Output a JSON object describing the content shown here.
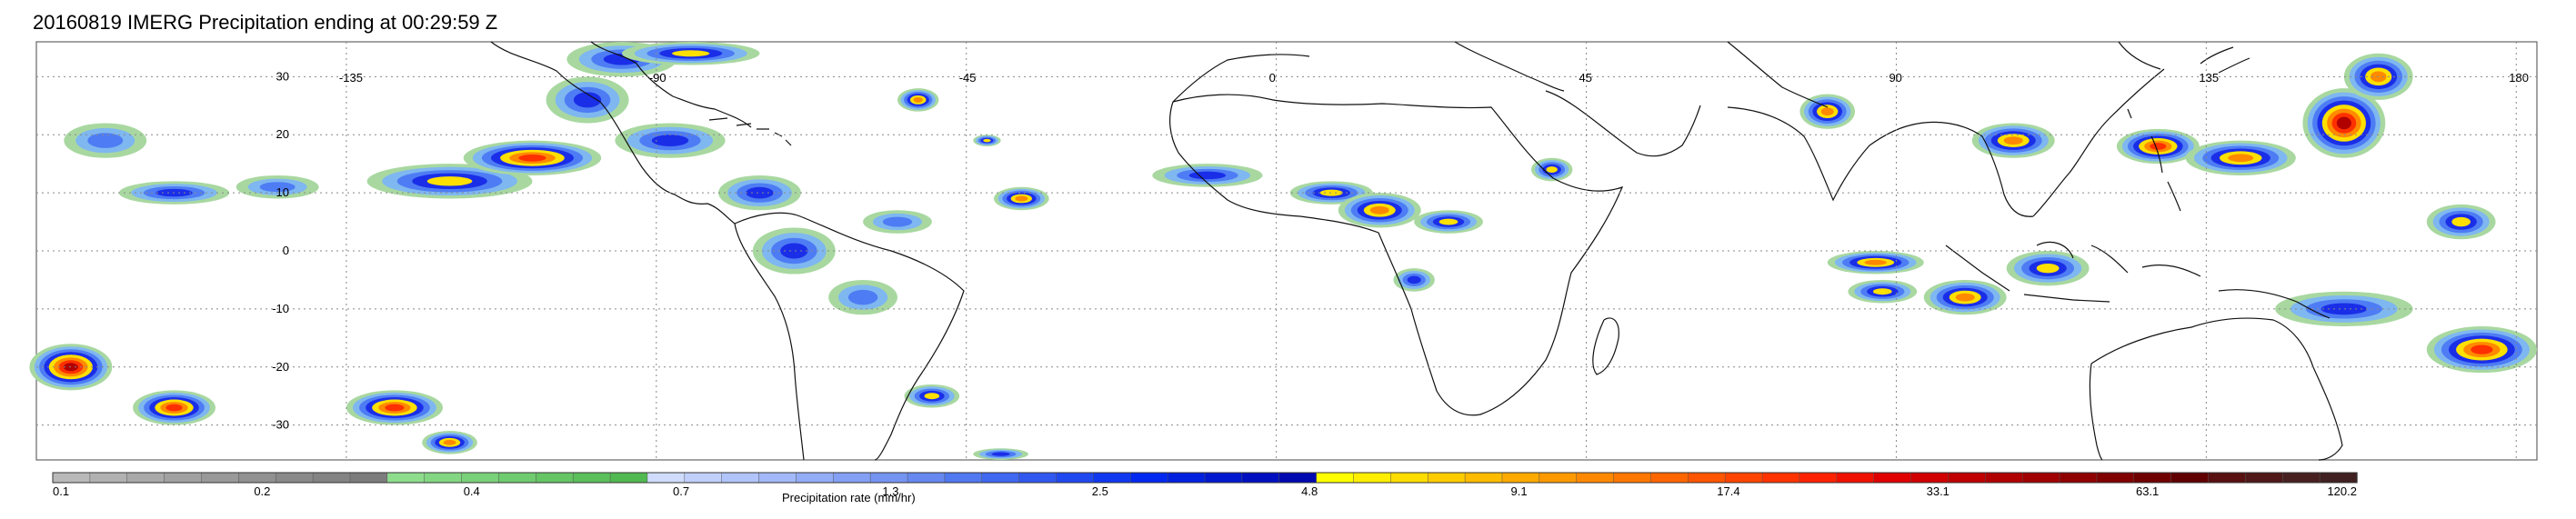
{
  "title": "20160819 IMERG Precipitation ending at 00:29:59 Z",
  "map": {
    "lon_ticks": [
      "-135",
      "-90",
      "-45",
      "0",
      "45",
      "90",
      "135",
      "180"
    ],
    "lat_ticks": [
      "30",
      "20",
      "10",
      "0",
      "-10",
      "-20",
      "-30"
    ],
    "lon_values": [
      -135,
      -90,
      -45,
      0,
      45,
      90,
      135,
      180
    ],
    "lat_values": [
      30,
      20,
      10,
      0,
      -10,
      -20,
      -30
    ],
    "lon_range": [
      -180,
      183
    ],
    "lat_range": [
      -36,
      36
    ],
    "grid": "dotted",
    "precip_clusters": [
      {
        "lon": -170,
        "lat": 19,
        "rx": 6,
        "ry": 3,
        "level": 3
      },
      {
        "lon": -160,
        "lat": 10,
        "rx": 8,
        "ry": 2,
        "level": 4
      },
      {
        "lon": -145,
        "lat": 11,
        "rx": 6,
        "ry": 2,
        "level": 3
      },
      {
        "lon": -120,
        "lat": 12,
        "rx": 12,
        "ry": 3,
        "level": 5
      },
      {
        "lon": -108,
        "lat": 16,
        "rx": 10,
        "ry": 3,
        "level": 7
      },
      {
        "lon": -100,
        "lat": 26,
        "rx": 6,
        "ry": 4,
        "level": 4
      },
      {
        "lon": -95,
        "lat": 33,
        "rx": 8,
        "ry": 3,
        "level": 4
      },
      {
        "lon": -85,
        "lat": 34,
        "rx": 10,
        "ry": 2,
        "level": 5
      },
      {
        "lon": -88,
        "lat": 19,
        "rx": 8,
        "ry": 3,
        "level": 4
      },
      {
        "lon": -75,
        "lat": 10,
        "rx": 6,
        "ry": 3,
        "level": 4
      },
      {
        "lon": -70,
        "lat": 0,
        "rx": 6,
        "ry": 4,
        "level": 4
      },
      {
        "lon": -60,
        "lat": -8,
        "rx": 5,
        "ry": 3,
        "level": 3
      },
      {
        "lon": -55,
        "lat": 5,
        "rx": 5,
        "ry": 2,
        "level": 3
      },
      {
        "lon": -52,
        "lat": 26,
        "rx": 3,
        "ry": 2,
        "level": 6
      },
      {
        "lon": -42,
        "lat": 19,
        "rx": 2,
        "ry": 1,
        "level": 5
      },
      {
        "lon": -37,
        "lat": 9,
        "rx": 4,
        "ry": 2,
        "level": 6
      },
      {
        "lon": -50,
        "lat": -25,
        "rx": 4,
        "ry": 2,
        "level": 5
      },
      {
        "lon": -40,
        "lat": -35,
        "rx": 4,
        "ry": 1,
        "level": 4
      },
      {
        "lon": -10,
        "lat": 13,
        "rx": 8,
        "ry": 2,
        "level": 4
      },
      {
        "lon": 8,
        "lat": 10,
        "rx": 6,
        "ry": 2,
        "level": 5
      },
      {
        "lon": 15,
        "lat": 7,
        "rx": 6,
        "ry": 3,
        "level": 6
      },
      {
        "lon": 25,
        "lat": 5,
        "rx": 5,
        "ry": 2,
        "level": 5
      },
      {
        "lon": 20,
        "lat": -5,
        "rx": 3,
        "ry": 2,
        "level": 4
      },
      {
        "lon": 40,
        "lat": 14,
        "rx": 3,
        "ry": 2,
        "level": 5
      },
      {
        "lon": 80,
        "lat": 24,
        "rx": 4,
        "ry": 3,
        "level": 6
      },
      {
        "lon": 87,
        "lat": -2,
        "rx": 7,
        "ry": 2,
        "level": 6
      },
      {
        "lon": 88,
        "lat": -7,
        "rx": 5,
        "ry": 2,
        "level": 5
      },
      {
        "lon": 107,
        "lat": 19,
        "rx": 6,
        "ry": 3,
        "level": 6
      },
      {
        "lon": 100,
        "lat": -8,
        "rx": 6,
        "ry": 3,
        "level": 6
      },
      {
        "lon": 112,
        "lat": -3,
        "rx": 6,
        "ry": 3,
        "level": 5
      },
      {
        "lon": 128,
        "lat": 18,
        "rx": 6,
        "ry": 3,
        "level": 7
      },
      {
        "lon": 140,
        "lat": 16,
        "rx": 8,
        "ry": 3,
        "level": 6
      },
      {
        "lon": 155,
        "lat": 22,
        "rx": 6,
        "ry": 6,
        "level": 8
      },
      {
        "lon": 160,
        "lat": 30,
        "rx": 5,
        "ry": 4,
        "level": 6
      },
      {
        "lon": 172,
        "lat": 5,
        "rx": 5,
        "ry": 3,
        "level": 5
      },
      {
        "lon": 155,
        "lat": -10,
        "rx": 10,
        "ry": 3,
        "level": 4
      },
      {
        "lon": 175,
        "lat": -17,
        "rx": 8,
        "ry": 4,
        "level": 7
      },
      {
        "lon": -175,
        "lat": -20,
        "rx": 6,
        "ry": 4,
        "level": 8
      },
      {
        "lon": -160,
        "lat": -27,
        "rx": 6,
        "ry": 3,
        "level": 7
      },
      {
        "lon": -128,
        "lat": -27,
        "rx": 7,
        "ry": 3,
        "level": 7
      },
      {
        "lon": -120,
        "lat": -33,
        "rx": 4,
        "ry": 2,
        "level": 6
      }
    ]
  },
  "colorbar": {
    "label": "Precipitation rate (mm/hr)",
    "tick_labels": [
      "0.1",
      "0.2",
      "0.4",
      "0.7",
      "1.3",
      "2.5",
      "4.8",
      "9.1",
      "17.4",
      "33.1",
      "63.1",
      "120.2"
    ],
    "colors": [
      "#b9b9b9",
      "#b1b1b1",
      "#a9a9a9",
      "#a1a1a1",
      "#999999",
      "#919191",
      "#8a8a8a",
      "#838383",
      "#7c7c7c",
      "#8ddd8d",
      "#83d783",
      "#79d179",
      "#6fcb6f",
      "#65c565",
      "#5bbf5b",
      "#51b951",
      "#cfdcfb",
      "#c0d0fb",
      "#b1c4fa",
      "#a2b8f8",
      "#93acf6",
      "#84a0f4",
      "#7594f2",
      "#6688f0",
      "#5078f0",
      "#4068f0",
      "#3058f0",
      "#2048f0",
      "#1038f0",
      "#0028f0",
      "#0020e0",
      "#0018d0",
      "#0010c0",
      "#0008b0",
      "#ffff00",
      "#ffee00",
      "#ffdd00",
      "#ffcc00",
      "#ffbb00",
      "#ffaa00",
      "#ff9900",
      "#ff8800",
      "#ff7700",
      "#ff6600",
      "#ff5500",
      "#ff4400",
      "#ff3300",
      "#ff2200",
      "#f01000",
      "#e00000",
      "#d00000",
      "#c00000",
      "#b00000",
      "#a00000",
      "#900000",
      "#800000",
      "#700000",
      "#600000",
      "#581010",
      "#501818",
      "#482020",
      "#402020"
    ]
  }
}
